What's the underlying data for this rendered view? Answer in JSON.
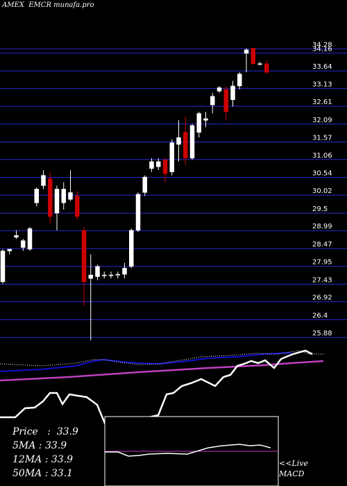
{
  "header": {
    "exchange": "AMEX",
    "ticker": "EMCR",
    "site": "munafa.pro"
  },
  "stats": [
    {
      "label": "Price",
      "value": "33.9"
    },
    {
      "label": "5MA",
      "value": "33.9"
    },
    {
      "label": "12MA",
      "value": "33.9"
    },
    {
      "label": "50MA",
      "value": "33.1"
    }
  ],
  "macd_label": {
    "line1": "<<Live",
    "line2": "MACD"
  },
  "colors": {
    "background": "#000000",
    "grid": "#2b2bd6",
    "up": "#ffffff",
    "down": "#cc0000",
    "ma_fast": "#ffffff",
    "ma_mid": "#1010d0",
    "ma_slow": "#c040c0"
  },
  "chart_data": {
    "type": "candlestick",
    "ylim": [
      25.6,
      34.45
    ],
    "y_ticks": [
      "34.28",
      "34.16",
      "33.64",
      "33.13",
      "32.61",
      "32.09",
      "31.57",
      "31.06",
      "30.54",
      "30.02",
      "29.5",
      "28.99",
      "28.47",
      "27.95",
      "27.43",
      "26.92",
      "26.4",
      "25.88"
    ],
    "candles": [
      {
        "o": 27.5,
        "h": 28.45,
        "l": 27.45,
        "c": 28.4
      },
      {
        "o": 28.4,
        "h": 28.45,
        "l": 28.3,
        "c": 28.45
      },
      {
        "o": 28.8,
        "h": 29.0,
        "l": 28.75,
        "c": 28.85
      },
      {
        "o": 28.5,
        "h": 28.75,
        "l": 28.4,
        "c": 28.7
      },
      {
        "o": 28.45,
        "h": 29.1,
        "l": 28.4,
        "c": 29.05
      },
      {
        "o": 29.8,
        "h": 30.25,
        "l": 29.7,
        "c": 30.2
      },
      {
        "o": 30.3,
        "h": 30.75,
        "l": 30.2,
        "c": 30.6
      },
      {
        "o": 30.5,
        "h": 30.7,
        "l": 29.2,
        "c": 29.4
      },
      {
        "o": 29.5,
        "h": 30.3,
        "l": 29.0,
        "c": 30.2
      },
      {
        "o": 29.8,
        "h": 30.4,
        "l": 29.6,
        "c": 30.2
      },
      {
        "o": 29.9,
        "h": 30.75,
        "l": 29.85,
        "c": 30.1
      },
      {
        "o": 30.0,
        "h": 30.15,
        "l": 29.3,
        "c": 29.4
      },
      {
        "o": 29.0,
        "h": 29.1,
        "l": 26.8,
        "c": 27.5
      },
      {
        "o": 27.6,
        "h": 28.3,
        "l": 25.8,
        "c": 27.7
      },
      {
        "o": 27.65,
        "h": 28.0,
        "l": 27.55,
        "c": 27.95
      },
      {
        "o": 27.7,
        "h": 27.8,
        "l": 27.6,
        "c": 27.7
      },
      {
        "o": 27.7,
        "h": 27.8,
        "l": 27.6,
        "c": 27.7
      },
      {
        "o": 27.7,
        "h": 27.8,
        "l": 27.6,
        "c": 27.72
      },
      {
        "o": 27.72,
        "h": 28.05,
        "l": 27.6,
        "c": 27.9
      },
      {
        "o": 27.95,
        "h": 29.05,
        "l": 27.9,
        "c": 29.0
      },
      {
        "o": 29.0,
        "h": 30.1,
        "l": 28.95,
        "c": 30.05
      },
      {
        "o": 30.1,
        "h": 30.6,
        "l": 30.0,
        "c": 30.55
      },
      {
        "o": 30.8,
        "h": 31.1,
        "l": 30.7,
        "c": 31.0
      },
      {
        "o": 30.85,
        "h": 31.1,
        "l": 30.75,
        "c": 31.0
      },
      {
        "o": 31.05,
        "h": 31.1,
        "l": 30.4,
        "c": 30.65
      },
      {
        "o": 30.7,
        "h": 31.65,
        "l": 30.6,
        "c": 31.55
      },
      {
        "o": 31.5,
        "h": 32.2,
        "l": 31.0,
        "c": 31.7
      },
      {
        "o": 31.85,
        "h": 32.3,
        "l": 30.9,
        "c": 31.1
      },
      {
        "o": 31.1,
        "h": 32.1,
        "l": 31.05,
        "c": 32.05
      },
      {
        "o": 31.85,
        "h": 32.45,
        "l": 31.7,
        "c": 32.4
      },
      {
        "o": 32.2,
        "h": 32.45,
        "l": 32.0,
        "c": 32.25
      },
      {
        "o": 32.65,
        "h": 33.0,
        "l": 32.4,
        "c": 32.9
      },
      {
        "o": 33.05,
        "h": 33.2,
        "l": 33.0,
        "c": 33.15
      },
      {
        "o": 33.1,
        "h": 33.2,
        "l": 32.2,
        "c": 32.45
      },
      {
        "o": 32.8,
        "h": 33.35,
        "l": 32.6,
        "c": 33.2
      },
      {
        "o": 33.2,
        "h": 33.6,
        "l": 33.1,
        "c": 33.55
      },
      {
        "o": 34.15,
        "h": 34.3,
        "l": 33.6,
        "c": 34.25
      },
      {
        "o": 34.3,
        "h": 34.3,
        "l": 33.8,
        "c": 33.85
      },
      {
        "o": 33.85,
        "h": 33.9,
        "l": 33.8,
        "c": 33.85
      },
      {
        "o": 33.85,
        "h": 33.95,
        "l": 33.55,
        "c": 33.6
      }
    ]
  }
}
